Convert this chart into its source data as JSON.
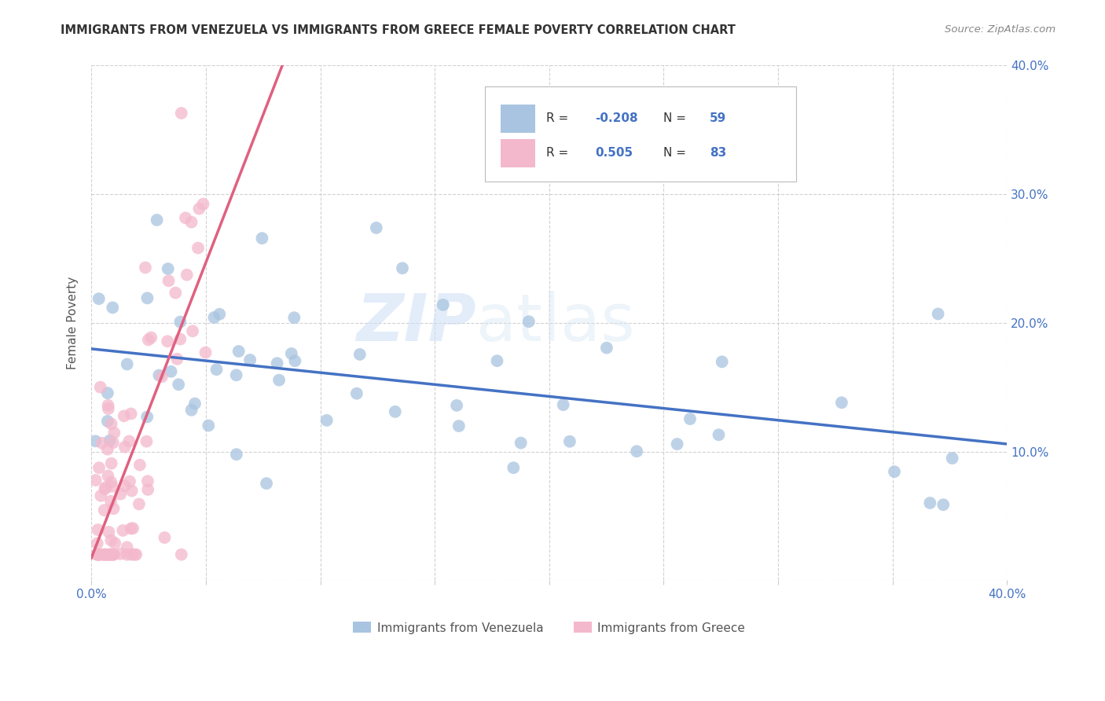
{
  "title": "IMMIGRANTS FROM VENEZUELA VS IMMIGRANTS FROM GREECE FEMALE POVERTY CORRELATION CHART",
  "source": "Source: ZipAtlas.com",
  "ylabel": "Female Poverty",
  "xlim": [
    0.0,
    0.4
  ],
  "ylim": [
    0.0,
    0.4
  ],
  "xtick_positions": [
    0.0,
    0.05,
    0.1,
    0.15,
    0.2,
    0.25,
    0.3,
    0.35,
    0.4
  ],
  "xticklabels": [
    "0.0%",
    "",
    "",
    "",
    "",
    "",
    "",
    "",
    "40.0%"
  ],
  "ytick_positions": [
    0.0,
    0.1,
    0.2,
    0.3,
    0.4
  ],
  "ytick_labels_right": [
    "",
    "10.0%",
    "20.0%",
    "30.0%",
    "40.0%"
  ],
  "venezuela_color": "#a8c4e0",
  "greece_color": "#f4b8cc",
  "venezuela_line_color": "#4472c4",
  "greece_line_color": "#e06080",
  "R_venezuela": -0.208,
  "N_venezuela": 59,
  "R_greece": 0.505,
  "N_greece": 83,
  "watermark_zip": "ZIP",
  "watermark_atlas": "atlas",
  "legend_label_venezuela": "Immigrants from Venezuela",
  "legend_label_greece": "Immigrants from Greece"
}
